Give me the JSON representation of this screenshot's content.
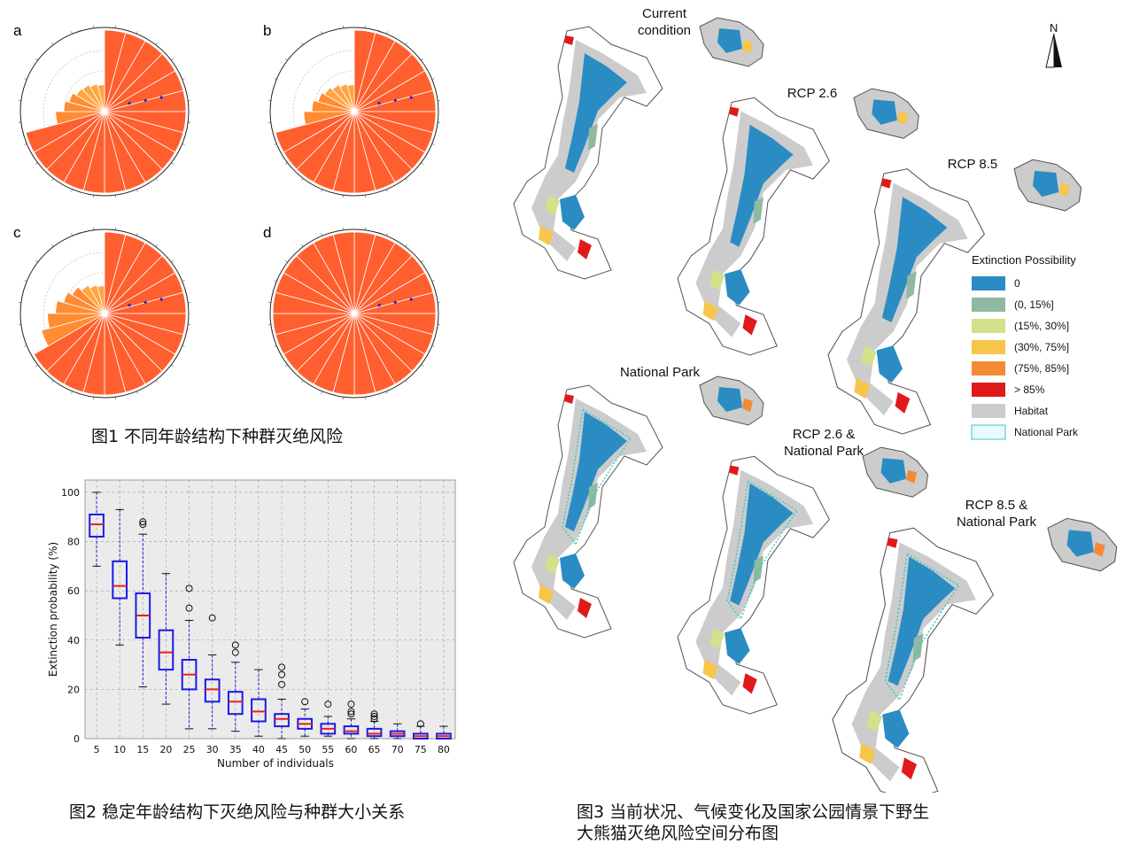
{
  "figure1": {
    "panels": [
      {
        "label": "a",
        "values": [
          100,
          100,
          100,
          100,
          100,
          100,
          100,
          100,
          100,
          100,
          100,
          100,
          100,
          100,
          100,
          100,
          100,
          60,
          50,
          45,
          40,
          38,
          35,
          33
        ]
      },
      {
        "label": "b",
        "values": [
          100,
          100,
          100,
          100,
          100,
          100,
          100,
          100,
          100,
          100,
          100,
          100,
          100,
          100,
          100,
          100,
          100,
          62,
          52,
          46,
          42,
          38,
          35,
          33
        ]
      },
      {
        "label": "c",
        "values": [
          100,
          100,
          100,
          100,
          100,
          100,
          100,
          100,
          100,
          100,
          100,
          100,
          100,
          100,
          100,
          100,
          80,
          70,
          60,
          52,
          46,
          40,
          36,
          34
        ]
      },
      {
        "label": "d",
        "values": [
          100,
          100,
          100,
          100,
          100,
          100,
          100,
          100,
          100,
          100,
          100,
          100,
          100,
          100,
          100,
          100,
          100,
          100,
          100,
          100,
          100,
          100,
          100,
          100
        ]
      }
    ],
    "colors": {
      "high": "#ff5f2e",
      "mid": "#ff8c32",
      "low": "#ffa544"
    },
    "caption": "图1 不同年龄结构下种群灭绝风险"
  },
  "chart_data": {
    "type": "box",
    "categories": [
      "5",
      "10",
      "15",
      "20",
      "25",
      "30",
      "35",
      "40",
      "45",
      "50",
      "55",
      "60",
      "65",
      "70",
      "75",
      "80"
    ],
    "series": [
      {
        "min": 70,
        "q1": 82,
        "median": 87,
        "q3": 91,
        "max": 100,
        "outliers": []
      },
      {
        "min": 38,
        "q1": 57,
        "median": 62,
        "q3": 72,
        "max": 93,
        "outliers": []
      },
      {
        "min": 21,
        "q1": 41,
        "median": 50,
        "q3": 59,
        "max": 83,
        "outliers": [
          87,
          88
        ]
      },
      {
        "min": 14,
        "q1": 28,
        "median": 35,
        "q3": 44,
        "max": 67,
        "outliers": []
      },
      {
        "min": 4,
        "q1": 20,
        "median": 26,
        "q3": 32,
        "max": 48,
        "outliers": [
          53,
          61
        ]
      },
      {
        "min": 4,
        "q1": 15,
        "median": 20,
        "q3": 24,
        "max": 34,
        "outliers": [
          49
        ]
      },
      {
        "min": 3,
        "q1": 10,
        "median": 15,
        "q3": 19,
        "max": 31,
        "outliers": [
          35,
          38
        ]
      },
      {
        "min": 1,
        "q1": 7,
        "median": 11,
        "q3": 16,
        "max": 28,
        "outliers": []
      },
      {
        "min": 0,
        "q1": 5,
        "median": 8,
        "q3": 10,
        "max": 16,
        "outliers": [
          22,
          26,
          29
        ]
      },
      {
        "min": 1,
        "q1": 4,
        "median": 6,
        "q3": 8,
        "max": 12,
        "outliers": [
          15
        ]
      },
      {
        "min": 1,
        "q1": 2,
        "median": 4,
        "q3": 6,
        "max": 9,
        "outliers": [
          14
        ]
      },
      {
        "min": 0,
        "q1": 2,
        "median": 3,
        "q3": 5,
        "max": 8,
        "outliers": [
          10,
          11,
          14
        ]
      },
      {
        "min": 0,
        "q1": 1,
        "median": 2,
        "q3": 4,
        "max": 7,
        "outliers": [
          8,
          9,
          10
        ]
      },
      {
        "min": 0,
        "q1": 1,
        "median": 2,
        "q3": 3,
        "max": 6,
        "outliers": []
      },
      {
        "min": 0,
        "q1": 0,
        "median": 1,
        "q3": 2,
        "max": 5,
        "outliers": [
          6
        ]
      },
      {
        "min": 0,
        "q1": 0,
        "median": 1,
        "q3": 2,
        "max": 5,
        "outliers": []
      }
    ],
    "xlabel": "Number of individuals",
    "ylabel": "Extinction probability (%)",
    "ylim": [
      0,
      105
    ],
    "yticks": [
      "0",
      "20",
      "40",
      "60",
      "80",
      "100"
    ],
    "grid": true,
    "colors": {
      "box": "#1a1ae6",
      "median": "#e62020",
      "background": "#ebebeb"
    }
  },
  "figure2": {
    "caption": "图2 稳定年龄结构下灭绝风险与种群大小关系"
  },
  "figure3": {
    "maps": [
      {
        "title_lines": [
          "Current",
          "condition"
        ]
      },
      {
        "title_lines": [
          "RCP 2.6"
        ]
      },
      {
        "title_lines": [
          "RCP 8.5"
        ]
      },
      {
        "title_lines": [
          "National Park"
        ]
      },
      {
        "title_lines": [
          "RCP 2.6 &",
          "National Park"
        ]
      },
      {
        "title_lines": [
          "RCP 8.5 &",
          "National Park"
        ]
      }
    ],
    "north_label": "N",
    "legend": {
      "title": "Extinction Possibility",
      "items": [
        {
          "label": "0",
          "color": "#2b8cc4"
        },
        {
          "label": "(0, 15%]",
          "color": "#8fb9a0"
        },
        {
          "label": "(15%, 30%]",
          "color": "#d4e08a"
        },
        {
          "label": "(30%, 75%]",
          "color": "#f7c54a"
        },
        {
          "label": "(75%, 85%]",
          "color": "#f58a35"
        },
        {
          "label": "> 85%",
          "color": "#e01a1a"
        },
        {
          "label": "Habitat",
          "color": "#cccccc"
        },
        {
          "label": "National Park",
          "color": "#3cc8c8"
        }
      ]
    },
    "caption_lines": [
      "图3 当前状况、气候变化及国家公园情景下野生",
      "大熊猫灭绝风险空间分布图"
    ]
  }
}
